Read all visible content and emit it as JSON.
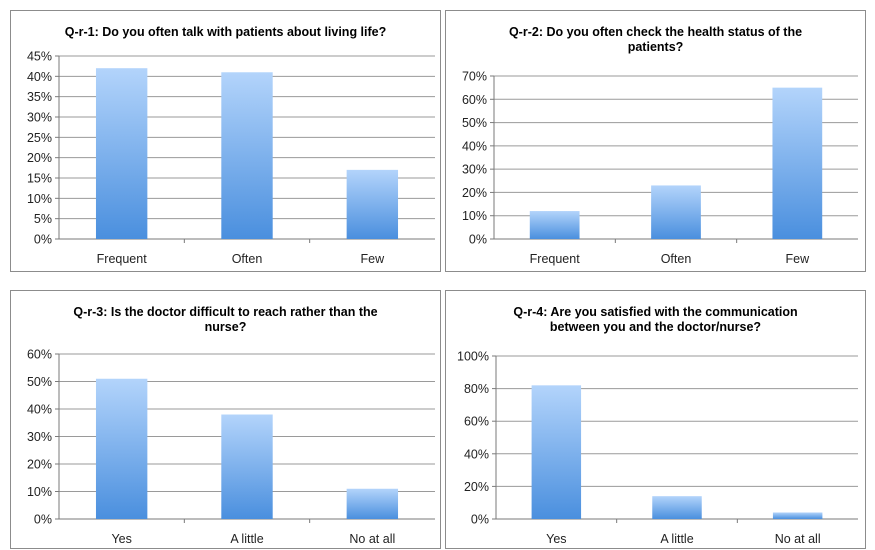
{
  "chart_data": [
    {
      "type": "bar",
      "title": "Q-r-1: Do you often talk with patients about living life?",
      "categories": [
        "Frequent",
        "Often",
        "Few"
      ],
      "values": [
        42,
        41,
        17
      ],
      "ylim": [
        0,
        45
      ],
      "yticks": [
        "0%",
        "5%",
        "10%",
        "15%",
        "20%",
        "25%",
        "30%",
        "35%",
        "40%",
        "45%"
      ],
      "grid": true,
      "color": "#4a8fde"
    },
    {
      "type": "bar",
      "title": "Q-r-2: Do you often check the health status of the\npatients?",
      "categories": [
        "Frequent",
        "Often",
        "Few"
      ],
      "values": [
        12,
        23,
        65
      ],
      "ylim": [
        0,
        70
      ],
      "yticks": [
        "0%",
        "10%",
        "20%",
        "30%",
        "40%",
        "50%",
        "60%",
        "70%"
      ],
      "grid": true,
      "color": "#4a8fde"
    },
    {
      "type": "bar",
      "title": "Q-r-3: Is the doctor difficult to reach rather than the\nnurse?",
      "categories": [
        "Yes",
        "A little",
        "No at all"
      ],
      "values": [
        51,
        38,
        11
      ],
      "ylim": [
        0,
        60
      ],
      "yticks": [
        "0%",
        "10%",
        "20%",
        "30%",
        "40%",
        "50%",
        "60%"
      ],
      "grid": true,
      "color": "#4a8fde"
    },
    {
      "type": "bar",
      "title": "Q-r-4: Are you satisfied with the communication\nbetween you and the doctor/nurse?",
      "categories": [
        "Yes",
        "A little",
        "No at all"
      ],
      "values": [
        82,
        14,
        4
      ],
      "ylim": [
        0,
        100
      ],
      "yticks": [
        "0%",
        "20%",
        "40%",
        "60%",
        "80%",
        "100%"
      ],
      "grid": true,
      "color": "#4a8fde"
    }
  ]
}
